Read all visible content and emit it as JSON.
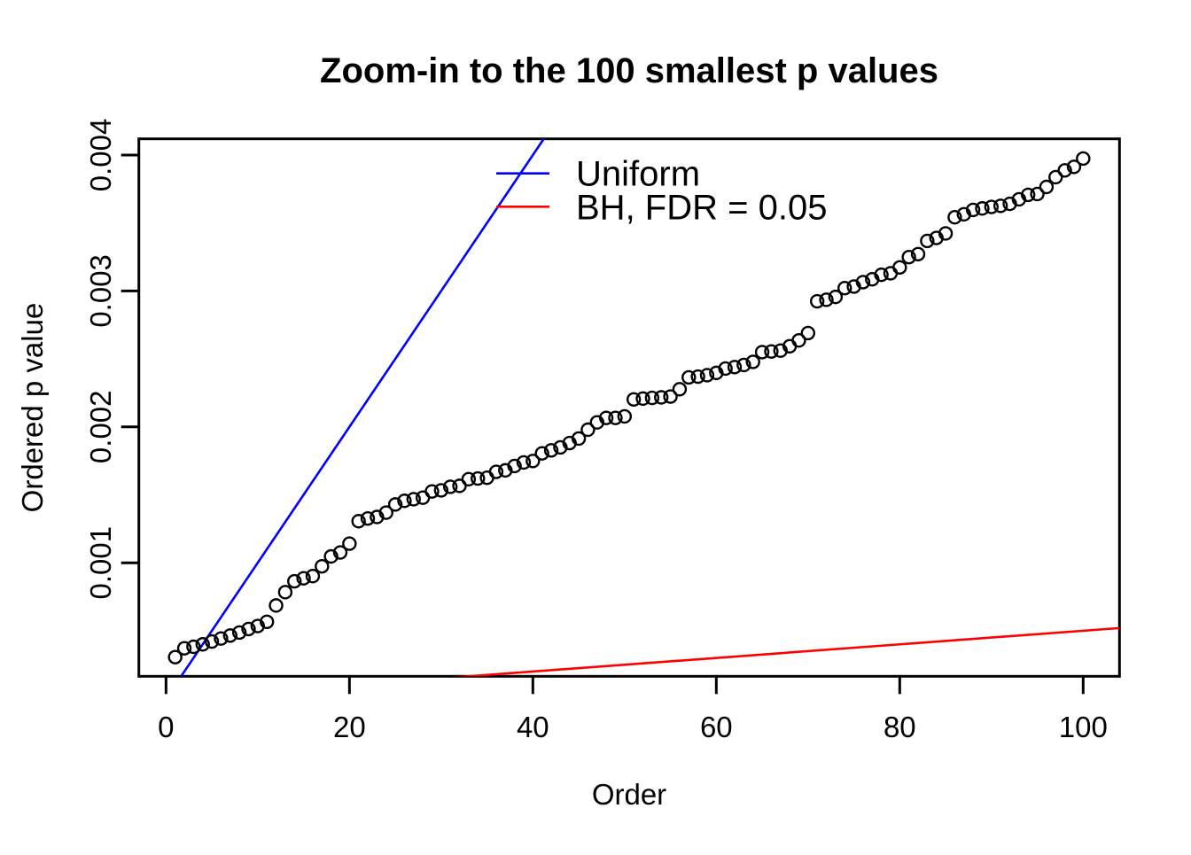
{
  "page": {
    "background": "#FFFFFF"
  },
  "chart_data": {
    "type": "scatter",
    "title": "Zoom-in to the 100 smallest p values",
    "xlabel": "Order",
    "ylabel": "Ordered p value",
    "xlim": [
      -2.96,
      103.96
    ],
    "ylim": [
      0.000165,
      0.004119
    ],
    "x_ticks": [
      0,
      20,
      40,
      60,
      80,
      100
    ],
    "x_tick_labels": [
      "0",
      "20",
      "40",
      "60",
      "80",
      "100"
    ],
    "y_ticks": [
      0.001,
      0.002,
      0.003,
      0.004
    ],
    "y_tick_labels": [
      "0.001",
      "0.002",
      "0.003",
      "0.004"
    ],
    "grid": false,
    "frame_color": "#000000",
    "marker": {
      "shape": "open-circle",
      "color": "#000000",
      "radius_px": 7
    },
    "series": [
      {
        "name": "ordered-p-values",
        "x_from": 1,
        "x_to": 100,
        "y": [
          0.000306,
          0.000371,
          0.000382,
          0.0004,
          0.000421,
          0.000443,
          0.000465,
          0.000487,
          0.000513,
          0.000535,
          0.000566,
          0.000686,
          0.000784,
          0.000864,
          0.000886,
          0.000902,
          0.000974,
          0.001047,
          0.001076,
          0.001141,
          0.001306,
          0.001326,
          0.001337,
          0.001369,
          0.001429,
          0.001456,
          0.001468,
          0.001479,
          0.001525,
          0.001533,
          0.001559,
          0.001566,
          0.001615,
          0.00162,
          0.001626,
          0.001669,
          0.00168,
          0.001712,
          0.001738,
          0.001749,
          0.001805,
          0.001827,
          0.001849,
          0.001881,
          0.001914,
          0.001979,
          0.002033,
          0.002066,
          0.002066,
          0.002077,
          0.002202,
          0.002208,
          0.002213,
          0.002217,
          0.002223,
          0.002277,
          0.002364,
          0.00237,
          0.00238,
          0.002397,
          0.002429,
          0.00244,
          0.002455,
          0.002478,
          0.00255,
          0.002555,
          0.002561,
          0.002593,
          0.002636,
          0.00269,
          0.002924,
          0.002935,
          0.002956,
          0.003021,
          0.003032,
          0.003065,
          0.003086,
          0.003119,
          0.00313,
          0.003173,
          0.003249,
          0.003271,
          0.003368,
          0.00339,
          0.003423,
          0.003542,
          0.003564,
          0.003596,
          0.003607,
          0.003618,
          0.003626,
          0.003641,
          0.003674,
          0.003707,
          0.003713,
          0.003765,
          0.003837,
          0.003887,
          0.003913,
          0.003974
        ]
      }
    ],
    "reference_lines": [
      {
        "name": "Uniform",
        "color": "#0000FF",
        "slope": 0.0001,
        "intercept": 0
      },
      {
        "name": "BH, FDR = 0.05",
        "color": "#FF0000",
        "slope": 5e-06,
        "intercept": 0
      }
    ],
    "legend": {
      "position": "top-center-inside",
      "entries": [
        {
          "label": "Uniform",
          "color": "#0000FF"
        },
        {
          "label": "BH, FDR = 0.05",
          "color": "#FF0000"
        }
      ]
    }
  }
}
